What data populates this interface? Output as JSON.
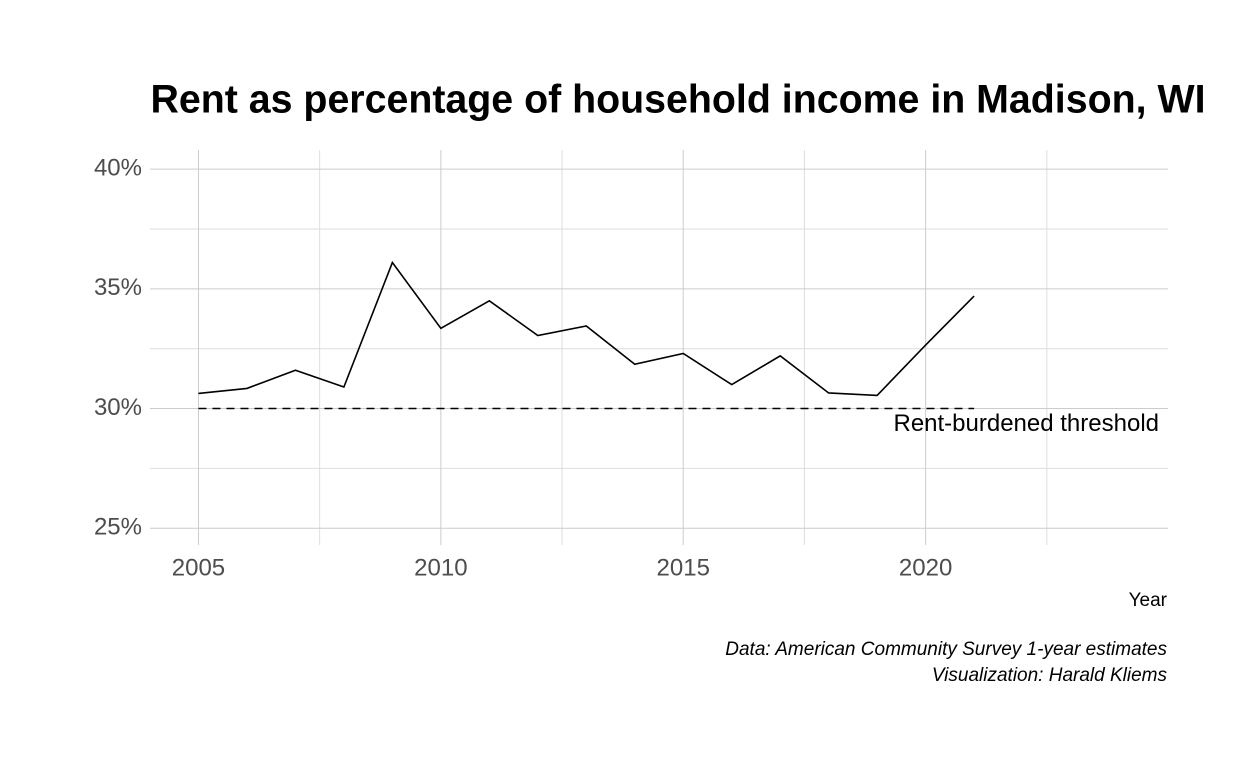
{
  "chart_data": {
    "type": "line",
    "title": "Rent as percentage of household income in Madison, WI",
    "x_label": "Year",
    "caption": [
      "Data: American Community Survey 1-year estimates",
      "Visualization: Harald Kliems"
    ],
    "x": [
      2005,
      2006,
      2007,
      2008,
      2009,
      2010,
      2011,
      2012,
      2013,
      2014,
      2015,
      2016,
      2017,
      2018,
      2019,
      2020,
      2021
    ],
    "series": [
      {
        "color": "#000000",
        "values": [
          30.63,
          30.84,
          31.6,
          30.9,
          36.1,
          33.35,
          34.5,
          33.05,
          33.45,
          31.85,
          32.3,
          31.0,
          32.2,
          30.65,
          30.55,
          32.65,
          34.7
        ]
      }
    ],
    "threshold": {
      "value": 30,
      "label": "Rent-burdened threshold"
    },
    "xlim": [
      2004,
      2025
    ],
    "ylim": [
      24.3,
      40.8
    ],
    "xticks": [
      2005,
      2010,
      2015,
      2020
    ],
    "x_minor_ticks": [
      2007.5,
      2012.5,
      2017.5,
      2022.5
    ],
    "yticks": [
      {
        "value": 25,
        "label": "25%"
      },
      {
        "value": 30,
        "label": "30%"
      },
      {
        "value": 35,
        "label": "35%"
      },
      {
        "value": 40,
        "label": "40%"
      }
    ],
    "y_minor_ticks": [
      27.5,
      32.5,
      37.5
    ],
    "grid": true
  }
}
